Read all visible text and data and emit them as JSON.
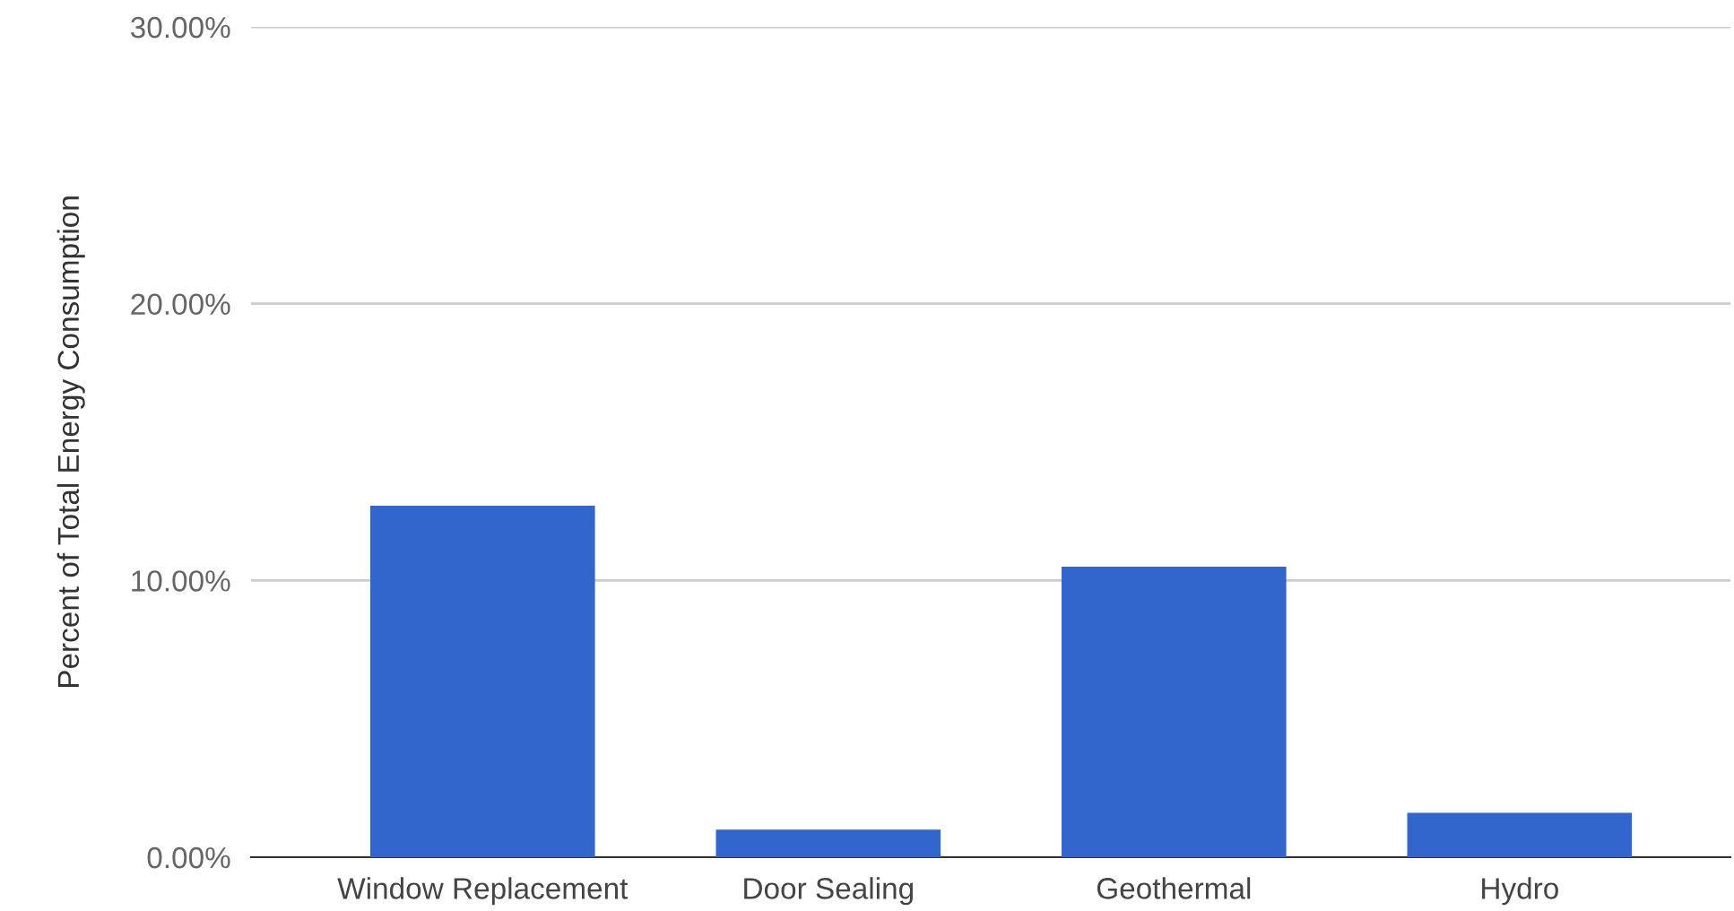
{
  "chart_data": {
    "type": "bar",
    "ylabel": "Percent of Total Energy Consumption",
    "categories": [
      "Window Replacement",
      "Door Sealing",
      "Geothermal",
      "Hydro"
    ],
    "values": [
      12.7,
      1.0,
      10.5,
      1.6
    ],
    "color": "#3366cc",
    "ylim": [
      0,
      30
    ],
    "yticks": [
      {
        "value": 0,
        "label": "0.00%"
      },
      {
        "value": 10,
        "label": "10.00%"
      },
      {
        "value": 20,
        "label": "20.00%"
      },
      {
        "value": 30,
        "label": "30.00%"
      }
    ],
    "grid": "y"
  }
}
